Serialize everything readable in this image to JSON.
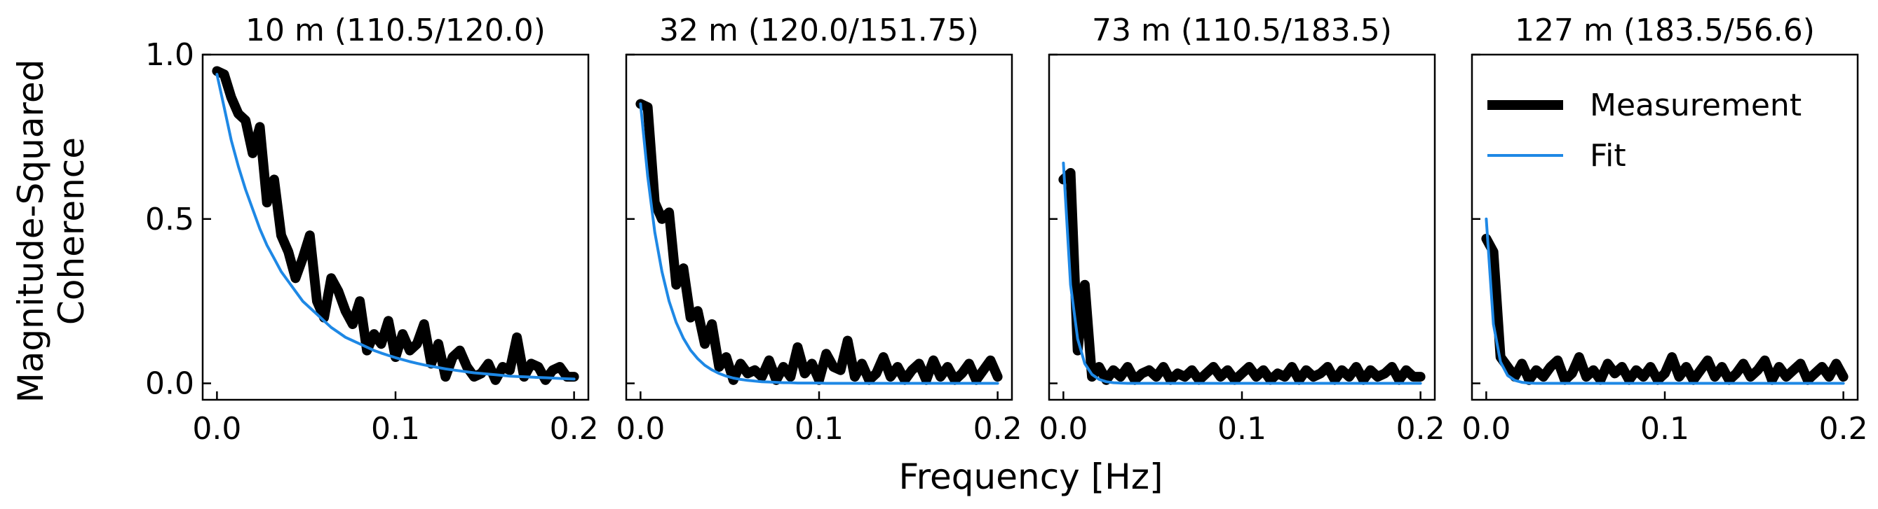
{
  "figure": {
    "ylabel_line1": "Magnitude-Squared",
    "ylabel_line2": "Coherence",
    "xlabel": "Frequency [Hz]"
  },
  "legend": {
    "entries": [
      {
        "label": "Measurement",
        "color": "#000000"
      },
      {
        "label": "Fit",
        "color": "#1e88e5"
      }
    ]
  },
  "colors": {
    "measurement": "#000000",
    "fit": "#1e88e5",
    "axes": "#000000"
  },
  "chart_data": [
    {
      "type": "line",
      "title": "10 m (110.5/120.0)",
      "xlabel": "",
      "ylabel": "",
      "xlim": [
        -0.008,
        0.208
      ],
      "ylim": [
        -0.05,
        1.0
      ],
      "xticks": [
        "0.0",
        "0.1",
        "0.2"
      ],
      "yticks": [
        "0.0",
        "0.5",
        "1.0"
      ],
      "x": [
        0.0,
        0.004,
        0.008,
        0.012,
        0.016,
        0.02,
        0.024,
        0.028,
        0.032,
        0.036,
        0.04,
        0.044,
        0.048,
        0.052,
        0.056,
        0.06,
        0.064,
        0.068,
        0.072,
        0.076,
        0.08,
        0.084,
        0.088,
        0.092,
        0.096,
        0.1,
        0.104,
        0.108,
        0.112,
        0.116,
        0.12,
        0.124,
        0.128,
        0.132,
        0.136,
        0.14,
        0.144,
        0.148,
        0.152,
        0.156,
        0.16,
        0.164,
        0.168,
        0.172,
        0.176,
        0.18,
        0.184,
        0.188,
        0.192,
        0.196,
        0.2
      ],
      "series": [
        {
          "name": "Measurement",
          "values": [
            0.95,
            0.94,
            0.87,
            0.82,
            0.8,
            0.7,
            0.78,
            0.55,
            0.62,
            0.45,
            0.4,
            0.32,
            0.38,
            0.45,
            0.25,
            0.2,
            0.32,
            0.28,
            0.22,
            0.18,
            0.25,
            0.1,
            0.15,
            0.12,
            0.19,
            0.08,
            0.15,
            0.1,
            0.12,
            0.18,
            0.06,
            0.12,
            0.02,
            0.08,
            0.1,
            0.05,
            0.02,
            0.03,
            0.06,
            0.01,
            0.05,
            0.04,
            0.14,
            0.02,
            0.06,
            0.05,
            0.01,
            0.04,
            0.05,
            0.02,
            0.02
          ]
        },
        {
          "name": "Fit",
          "values": [
            0.94,
            0.84,
            0.74,
            0.66,
            0.59,
            0.53,
            0.47,
            0.42,
            0.38,
            0.34,
            0.31,
            0.28,
            0.25,
            0.23,
            0.21,
            0.19,
            0.17,
            0.155,
            0.14,
            0.13,
            0.12,
            0.11,
            0.1,
            0.092,
            0.085,
            0.078,
            0.072,
            0.066,
            0.061,
            0.056,
            0.052,
            0.048,
            0.044,
            0.041,
            0.038,
            0.035,
            0.032,
            0.03,
            0.028,
            0.026,
            0.024,
            0.022,
            0.021,
            0.02,
            0.019,
            0.018,
            0.017,
            0.016,
            0.015,
            0.014,
            0.013
          ]
        }
      ]
    },
    {
      "type": "line",
      "title": "32 m (120.0/151.75)",
      "xlabel": "",
      "ylabel": "",
      "xlim": [
        -0.008,
        0.208
      ],
      "ylim": [
        -0.05,
        1.0
      ],
      "xticks": [
        "0.0",
        "0.1",
        "0.2"
      ],
      "yticks": [],
      "x": [
        0.0,
        0.004,
        0.008,
        0.012,
        0.016,
        0.02,
        0.024,
        0.028,
        0.032,
        0.036,
        0.04,
        0.044,
        0.048,
        0.052,
        0.056,
        0.06,
        0.064,
        0.068,
        0.072,
        0.076,
        0.08,
        0.084,
        0.088,
        0.092,
        0.096,
        0.1,
        0.104,
        0.108,
        0.112,
        0.116,
        0.12,
        0.124,
        0.128,
        0.132,
        0.136,
        0.14,
        0.144,
        0.148,
        0.152,
        0.156,
        0.16,
        0.164,
        0.168,
        0.172,
        0.176,
        0.18,
        0.184,
        0.188,
        0.192,
        0.196,
        0.2
      ],
      "series": [
        {
          "name": "Measurement",
          "values": [
            0.85,
            0.84,
            0.55,
            0.5,
            0.52,
            0.3,
            0.35,
            0.2,
            0.22,
            0.12,
            0.18,
            0.05,
            0.08,
            0.01,
            0.06,
            0.03,
            0.04,
            0.02,
            0.07,
            0.01,
            0.05,
            0.02,
            0.11,
            0.03,
            0.06,
            0.01,
            0.09,
            0.05,
            0.04,
            0.13,
            0.02,
            0.06,
            0.01,
            0.03,
            0.08,
            0.02,
            0.05,
            0.01,
            0.04,
            0.06,
            0.01,
            0.07,
            0.02,
            0.05,
            0.01,
            0.03,
            0.06,
            0.01,
            0.04,
            0.07,
            0.02
          ]
        },
        {
          "name": "Fit",
          "values": [
            0.85,
            0.63,
            0.46,
            0.34,
            0.25,
            0.185,
            0.137,
            0.101,
            0.075,
            0.055,
            0.041,
            0.03,
            0.022,
            0.016,
            0.012,
            0.009,
            0.007,
            0.005,
            0.004,
            0.003,
            0.002,
            0.002,
            0.001,
            0.001,
            0.001,
            0.001,
            0.0,
            0.0,
            0.0,
            0.0,
            0.0,
            0.0,
            0.0,
            0.0,
            0.0,
            0.0,
            0.0,
            0.0,
            0.0,
            0.0,
            0.0,
            0.0,
            0.0,
            0.0,
            0.0,
            0.0,
            0.0,
            0.0,
            0.0,
            0.0,
            0.0
          ]
        }
      ]
    },
    {
      "type": "line",
      "title": "73 m (110.5/183.5)",
      "xlabel": "",
      "ylabel": "",
      "xlim": [
        -0.008,
        0.208
      ],
      "ylim": [
        -0.05,
        1.0
      ],
      "xticks": [
        "0.0",
        "0.1",
        "0.2"
      ],
      "yticks": [],
      "x": [
        0.0,
        0.004,
        0.008,
        0.012,
        0.016,
        0.02,
        0.024,
        0.028,
        0.032,
        0.036,
        0.04,
        0.044,
        0.048,
        0.052,
        0.056,
        0.06,
        0.064,
        0.068,
        0.072,
        0.076,
        0.08,
        0.084,
        0.088,
        0.092,
        0.096,
        0.1,
        0.104,
        0.108,
        0.112,
        0.116,
        0.12,
        0.124,
        0.128,
        0.132,
        0.136,
        0.14,
        0.144,
        0.148,
        0.152,
        0.156,
        0.16,
        0.164,
        0.168,
        0.172,
        0.176,
        0.18,
        0.184,
        0.188,
        0.192,
        0.196,
        0.2
      ],
      "series": [
        {
          "name": "Measurement",
          "values": [
            0.62,
            0.64,
            0.1,
            0.3,
            0.02,
            0.05,
            0.01,
            0.04,
            0.02,
            0.05,
            0.01,
            0.03,
            0.04,
            0.02,
            0.05,
            0.01,
            0.03,
            0.02,
            0.04,
            0.01,
            0.03,
            0.05,
            0.02,
            0.04,
            0.01,
            0.03,
            0.05,
            0.02,
            0.04,
            0.01,
            0.03,
            0.02,
            0.05,
            0.01,
            0.04,
            0.02,
            0.03,
            0.05,
            0.01,
            0.04,
            0.02,
            0.05,
            0.01,
            0.04,
            0.02,
            0.03,
            0.05,
            0.01,
            0.04,
            0.02,
            0.02
          ]
        },
        {
          "name": "Fit",
          "values": [
            0.67,
            0.3,
            0.135,
            0.06,
            0.027,
            0.012,
            0.005,
            0.002,
            0.001,
            0.0,
            0.0,
            0.0,
            0.0,
            0.0,
            0.0,
            0.0,
            0.0,
            0.0,
            0.0,
            0.0,
            0.0,
            0.0,
            0.0,
            0.0,
            0.0,
            0.0,
            0.0,
            0.0,
            0.0,
            0.0,
            0.0,
            0.0,
            0.0,
            0.0,
            0.0,
            0.0,
            0.0,
            0.0,
            0.0,
            0.0,
            0.0,
            0.0,
            0.0,
            0.0,
            0.0,
            0.0,
            0.0,
            0.0,
            0.0,
            0.0,
            0.0
          ]
        }
      ]
    },
    {
      "type": "line",
      "title": "127 m (183.5/56.6)",
      "xlabel": "",
      "ylabel": "",
      "xlim": [
        -0.008,
        0.208
      ],
      "ylim": [
        -0.05,
        1.0
      ],
      "xticks": [
        "0.0",
        "0.1",
        "0.2"
      ],
      "yticks": [],
      "legend_position": "top-right",
      "x": [
        0.0,
        0.004,
        0.008,
        0.012,
        0.016,
        0.02,
        0.024,
        0.028,
        0.032,
        0.036,
        0.04,
        0.044,
        0.048,
        0.052,
        0.056,
        0.06,
        0.064,
        0.068,
        0.072,
        0.076,
        0.08,
        0.084,
        0.088,
        0.092,
        0.096,
        0.1,
        0.104,
        0.108,
        0.112,
        0.116,
        0.12,
        0.124,
        0.128,
        0.132,
        0.136,
        0.14,
        0.144,
        0.148,
        0.152,
        0.156,
        0.16,
        0.164,
        0.168,
        0.172,
        0.176,
        0.18,
        0.184,
        0.188,
        0.192,
        0.196,
        0.2
      ],
      "series": [
        {
          "name": "Measurement",
          "values": [
            0.44,
            0.4,
            0.08,
            0.05,
            0.02,
            0.06,
            0.01,
            0.04,
            0.02,
            0.05,
            0.07,
            0.01,
            0.03,
            0.08,
            0.02,
            0.04,
            0.01,
            0.06,
            0.03,
            0.05,
            0.01,
            0.04,
            0.02,
            0.05,
            0.01,
            0.03,
            0.08,
            0.02,
            0.05,
            0.01,
            0.04,
            0.07,
            0.02,
            0.05,
            0.01,
            0.03,
            0.06,
            0.02,
            0.04,
            0.07,
            0.01,
            0.05,
            0.02,
            0.04,
            0.06,
            0.01,
            0.03,
            0.05,
            0.02,
            0.06,
            0.02
          ]
        },
        {
          "name": "Fit",
          "values": [
            0.5,
            0.18,
            0.065,
            0.024,
            0.009,
            0.003,
            0.001,
            0.0,
            0.0,
            0.0,
            0.0,
            0.0,
            0.0,
            0.0,
            0.0,
            0.0,
            0.0,
            0.0,
            0.0,
            0.0,
            0.0,
            0.0,
            0.0,
            0.0,
            0.0,
            0.0,
            0.0,
            0.0,
            0.0,
            0.0,
            0.0,
            0.0,
            0.0,
            0.0,
            0.0,
            0.0,
            0.0,
            0.0,
            0.0,
            0.0,
            0.0,
            0.0,
            0.0,
            0.0,
            0.0,
            0.0,
            0.0,
            0.0,
            0.0,
            0.0,
            0.0
          ]
        }
      ]
    }
  ]
}
